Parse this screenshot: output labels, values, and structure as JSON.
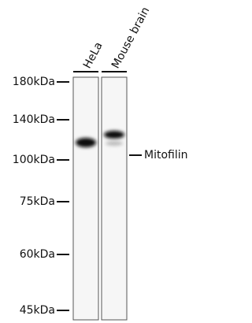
{
  "lanes": [
    "HeLa",
    "Mouse brain"
  ],
  "markers": [
    "180kDa",
    "140kDa",
    "100kDa",
    "75kDa",
    "60kDa",
    "45kDa"
  ],
  "band_label": "Mitofilin"
}
